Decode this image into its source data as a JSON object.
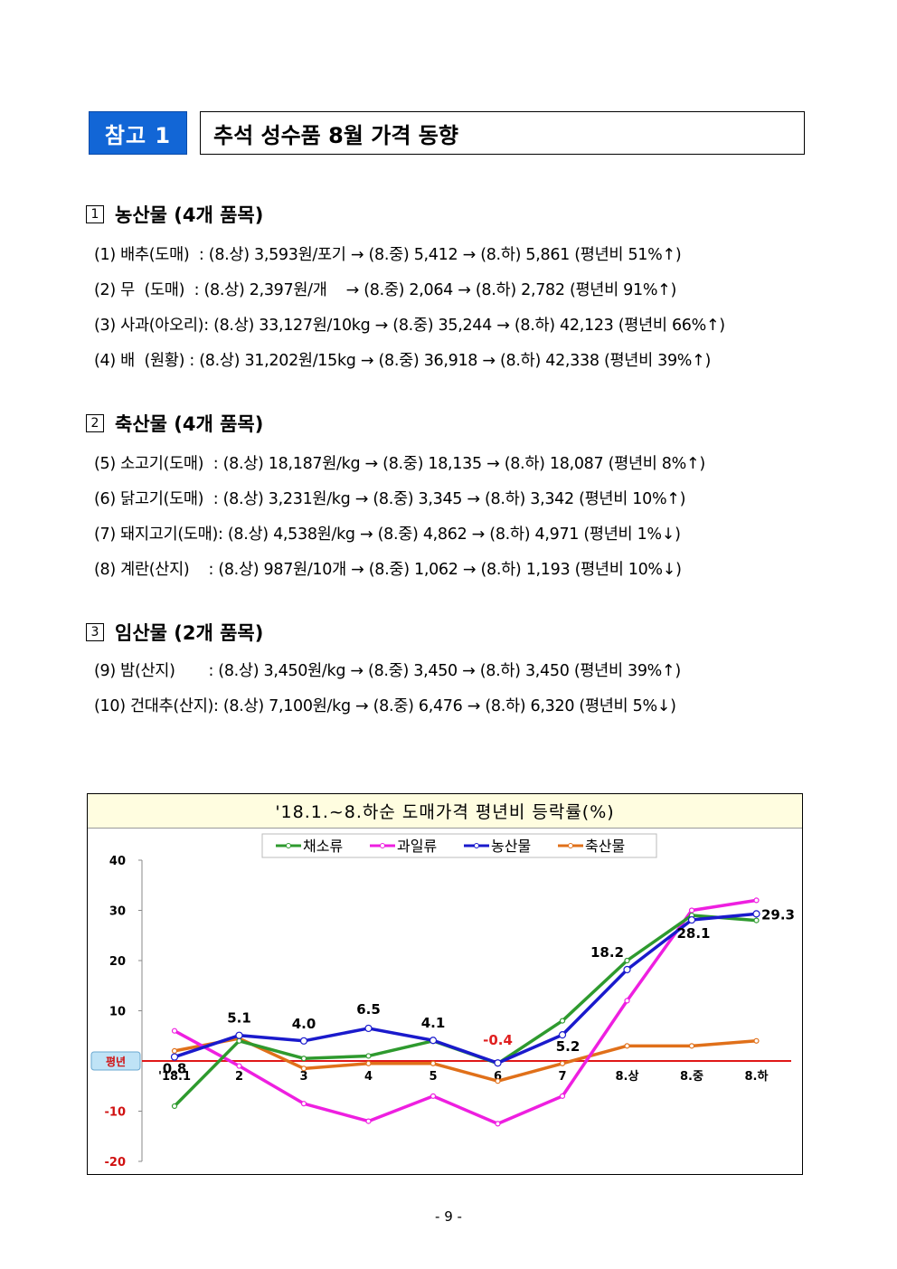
{
  "header": {
    "badge": "참고 1",
    "title": "추석 성수품 8월 가격 동향"
  },
  "sections": [
    {
      "num": "1",
      "heading": "농산물 (4개 품목)",
      "items": [
        "(1) 배추(도매)  : (8.상) 3,593원/포기 → (8.중) 5,412 → (8.하) 5,861 (평년비 51%↑)",
        "(2) 무  (도매)  : (8.상) 2,397원/개    → (8.중) 2,064 → (8.하) 2,782 (평년비 91%↑)",
        "(3) 사과(아오리): (8.상) 33,127원/10kg → (8.중) 35,244 → (8.하) 42,123 (평년비 66%↑)",
        "(4) 배  (원황) : (8.상) 31,202원/15kg → (8.중) 36,918 → (8.하) 42,338 (평년비 39%↑)"
      ]
    },
    {
      "num": "2",
      "heading": "축산물 (4개 품목)",
      "items": [
        "(5) 소고기(도매)  : (8.상) 18,187원/kg → (8.중) 18,135 → (8.하) 18,087 (평년비 8%↑)",
        "(6) 닭고기(도매)  : (8.상) 3,231원/kg → (8.중) 3,345 → (8.하) 3,342 (평년비 10%↑)",
        "(7) 돼지고기(도매): (8.상) 4,538원/kg → (8.중) 4,862 → (8.하) 4,971 (평년비 1%↓)",
        "(8) 계란(산지)    : (8.상) 987원/10개 → (8.중) 1,062 → (8.하) 1,193 (평년비 10%↓)"
      ]
    },
    {
      "num": "3",
      "heading": "임산물 (2개 품목)",
      "items": [
        "(9) 밤(산지)       : (8.상) 3,450원/kg → (8.중) 3,450 → (8.하) 3,450 (평년비 39%↑)",
        "(10) 건대추(산지): (8.상) 7,100원/kg → (8.중) 6,476 → (8.하) 6,320 (평년비 5%↓)"
      ]
    }
  ],
  "chart_data": {
    "type": "line",
    "title": "'18.1.~8.하순 도매가격 평년비 등락률(%)",
    "categories": [
      "'18.1",
      "2",
      "3",
      "4",
      "5",
      "6",
      "7",
      "8.상",
      "8.중",
      "8.하"
    ],
    "ylim": [
      -20,
      40
    ],
    "yticks": [
      40,
      30,
      20,
      10,
      -10,
      -20
    ],
    "baseline_label": "평년",
    "grid": false,
    "legend_position": "top",
    "series": [
      {
        "name": "채소류",
        "color": "#2e9a2e",
        "values": [
          -9,
          4,
          0.5,
          1,
          4,
          -0.5,
          8,
          20,
          29,
          28
        ]
      },
      {
        "name": "과일류",
        "color": "#ee1fe0",
        "values": [
          6,
          -1,
          -8.5,
          -12,
          -7,
          -12.5,
          -7,
          12,
          30,
          32
        ]
      },
      {
        "name": "농산물",
        "color": "#1a1acc",
        "values": [
          0.8,
          5.1,
          4.0,
          6.5,
          4.1,
          -0.4,
          5.2,
          18.2,
          28.1,
          29.3
        ]
      },
      {
        "name": "축산물",
        "color": "#e0701a",
        "values": [
          2,
          4.5,
          -1.5,
          -0.5,
          -0.5,
          -4,
          -0.5,
          3,
          3,
          4
        ]
      }
    ],
    "data_labels": [
      {
        "series": "농산물",
        "index": 0,
        "text": "0.8",
        "color": "#000000"
      },
      {
        "series": "농산물",
        "index": 1,
        "text": "5.1",
        "color": "#000000"
      },
      {
        "series": "농산물",
        "index": 2,
        "text": "4.0",
        "color": "#000000"
      },
      {
        "series": "농산물",
        "index": 3,
        "text": "6.5",
        "color": "#000000"
      },
      {
        "series": "농산물",
        "index": 4,
        "text": "4.1",
        "color": "#000000"
      },
      {
        "series": "농산물",
        "index": 5,
        "text": "-0.4",
        "color": "#e02020"
      },
      {
        "series": "농산물",
        "index": 6,
        "text": "5.2",
        "color": "#000000"
      },
      {
        "series": "농산물",
        "index": 7,
        "text": "18.2",
        "color": "#000000"
      },
      {
        "series": "농산물",
        "index": 8,
        "text": "28.1",
        "color": "#000000"
      },
      {
        "series": "농산물",
        "index": 9,
        "text": "29.3",
        "color": "#000000"
      }
    ]
  },
  "footer": {
    "page": "- 9 -"
  }
}
